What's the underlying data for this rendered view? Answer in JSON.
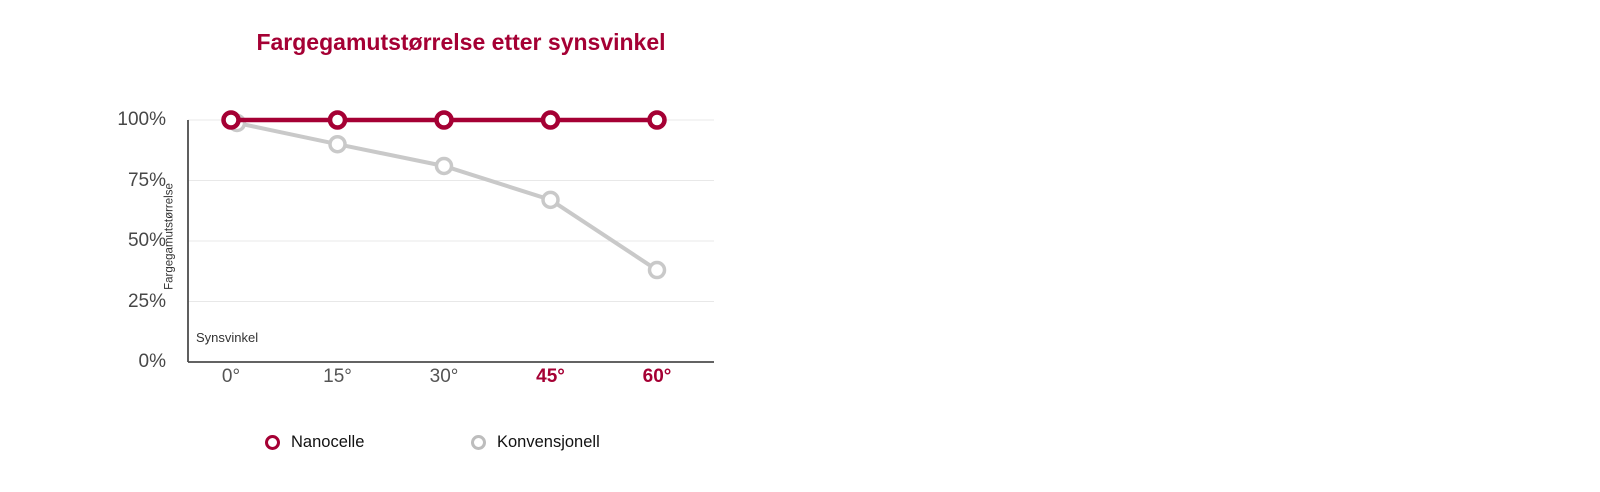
{
  "page": {
    "background_color": "#ffffff"
  },
  "chart_data": {
    "type": "line",
    "title": "Fargegamutstørrelse etter synsvinkel",
    "title_color": "#a50034",
    "xlabel": "Synsvinkel",
    "ylabel": "Fargegamutstørrelse",
    "categories": [
      "0°",
      "15°",
      "30°",
      "45°",
      "60°"
    ],
    "x_tick_highlight": [
      false,
      false,
      false,
      true,
      true
    ],
    "series": [
      {
        "name": "Nanocelle",
        "values": [
          100,
          100,
          100,
          100,
          100
        ],
        "color": "#a50034",
        "legend_marker_color": "#a50034"
      },
      {
        "name": "Konvensjonell",
        "values": [
          100,
          90,
          81,
          67,
          38
        ],
        "color": "#c9c9c9",
        "legend_marker_color": "#bdbdbd"
      }
    ],
    "ylim": [
      0,
      100
    ],
    "y_tick_values": [
      0,
      25,
      50,
      75,
      100
    ],
    "y_tick_labels": [
      "0%",
      "25%",
      "50%",
      "75%",
      "100%"
    ],
    "grid": true,
    "grid_color": "#e8e8e8",
    "axis_color": "#4d4d4d",
    "x_tick_color": "#545454",
    "x_tick_highlight_color": "#a50034",
    "y_tick_color": "#474747",
    "legend_position": "bottom"
  }
}
